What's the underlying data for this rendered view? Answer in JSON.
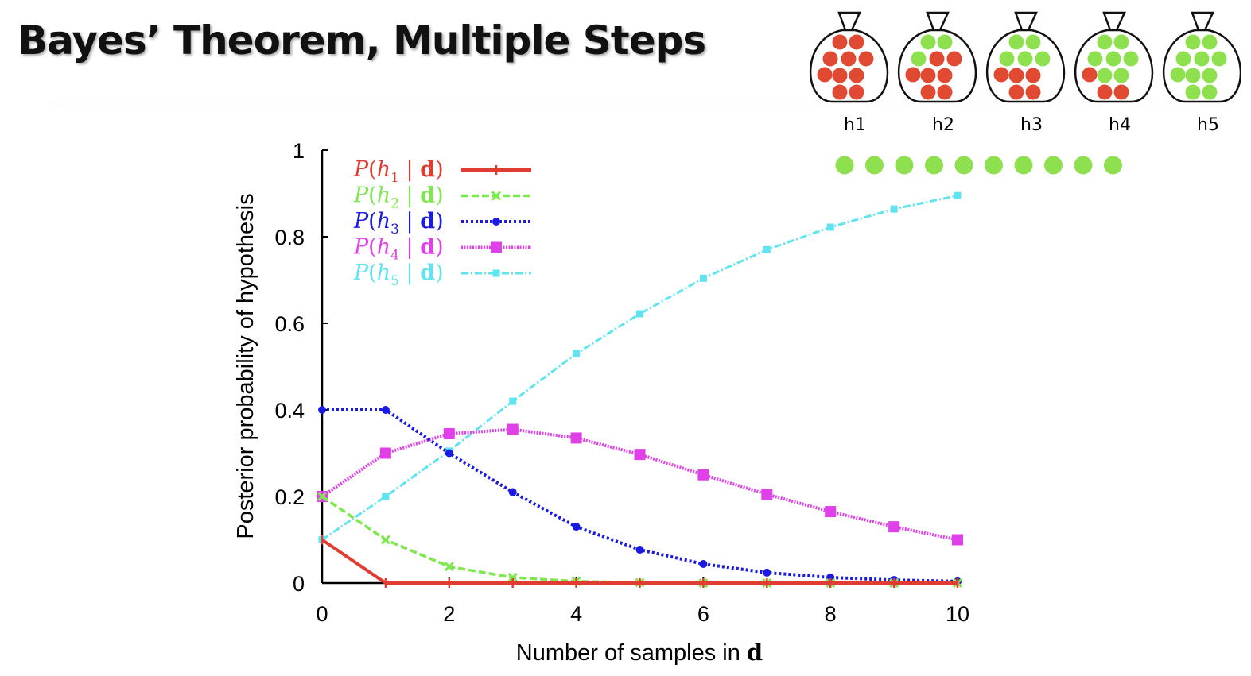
{
  "slide": {
    "title": "Bayes’ Theorem, Multiple Steps"
  },
  "bags": [
    {
      "label": "h1",
      "red": 10,
      "green": 0
    },
    {
      "label": "h2",
      "red": 7,
      "green": 3
    },
    {
      "label": "h3",
      "red": 5,
      "green": 5
    },
    {
      "label": "h4",
      "red": 3,
      "green": 7
    },
    {
      "label": "h5",
      "red": 0,
      "green": 10
    }
  ],
  "observed_samples": {
    "count": 10,
    "color": "#8ee04f"
  },
  "colors": {
    "red": "#e04a33",
    "green": "#8ee04f",
    "bag_outline": "#111111"
  },
  "chart_data": {
    "type": "line",
    "xlabel_text": "Number of samples in ",
    "xlabel_bold": "d",
    "ylabel": "Posterior probability of hypothesis",
    "xlim": [
      0,
      10
    ],
    "ylim": [
      0,
      1
    ],
    "xticks": [
      "0",
      "2",
      "4",
      "6",
      "8",
      "10"
    ],
    "yticks": [
      "0",
      "0.2",
      "0.4",
      "0.6",
      "0.8",
      "1"
    ],
    "legend_position": "top-left",
    "x": [
      0,
      1,
      2,
      3,
      4,
      5,
      6,
      7,
      8,
      9,
      10
    ],
    "series": [
      {
        "name": "P(h1 | d)",
        "color": "#e03c31",
        "dash": "solid",
        "marker": "plus",
        "values": [
          0.1,
          0,
          0,
          0,
          0,
          0,
          0,
          0,
          0,
          0,
          0
        ]
      },
      {
        "name": "P(h2 | d)",
        "color": "#7ee84e",
        "dash": "dashed",
        "marker": "cross",
        "values": [
          0.2,
          0.1,
          0.038,
          0.013,
          0.004,
          0.001,
          0,
          0,
          0,
          0,
          0
        ]
      },
      {
        "name": "P(h3 | d)",
        "color": "#1a1ae0",
        "dash": "dotted",
        "marker": "dot",
        "values": [
          0.4,
          0.4,
          0.3,
          0.21,
          0.13,
          0.077,
          0.044,
          0.024,
          0.013,
          0.007,
          0.004
        ]
      },
      {
        "name": "P(h4 | d)",
        "color": "#e040e8",
        "dash": "fine",
        "marker": "square",
        "values": [
          0.2,
          0.3,
          0.345,
          0.355,
          0.335,
          0.297,
          0.25,
          0.205,
          0.165,
          0.13,
          0.1
        ]
      },
      {
        "name": "P(h5 | d)",
        "color": "#60e4f0",
        "dash": "dashdot",
        "marker": "smallsquare",
        "values": [
          0.1,
          0.2,
          0.305,
          0.42,
          0.53,
          0.622,
          0.704,
          0.77,
          0.822,
          0.864,
          0.895
        ]
      }
    ],
    "legend": [
      {
        "p": "P",
        "open": "(",
        "h": "h",
        "sub": "1",
        "bar": " | ",
        "d": "d",
        "close": ")"
      },
      {
        "p": "P",
        "open": "(",
        "h": "h",
        "sub": "2",
        "bar": " | ",
        "d": "d",
        "close": ")"
      },
      {
        "p": "P",
        "open": "(",
        "h": "h",
        "sub": "3",
        "bar": " | ",
        "d": "d",
        "close": ")"
      },
      {
        "p": "P",
        "open": "(",
        "h": "h",
        "sub": "4",
        "bar": " | ",
        "d": "d",
        "close": ")"
      },
      {
        "p": "P",
        "open": "(",
        "h": "h",
        "sub": "5",
        "bar": " | ",
        "d": "d",
        "close": ")"
      }
    ]
  }
}
